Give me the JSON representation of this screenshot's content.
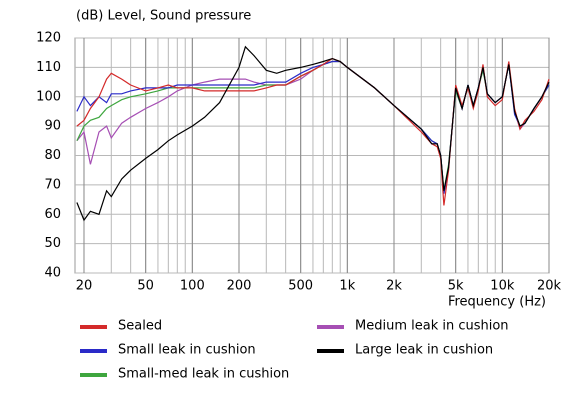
{
  "chart_data": {
    "type": "line",
    "title": "(dB)  Level, Sound pressure",
    "x_label": "Frequency  (Hz)",
    "log_x": true,
    "grid": true,
    "xlim": [
      17.5,
      20000
    ],
    "ylim": [
      40,
      120
    ],
    "xticks": [
      20,
      50,
      100,
      200,
      500,
      {
        "value": 1000,
        "label": "1k"
      },
      {
        "value": 2000,
        "label": "2k"
      },
      {
        "value": 5000,
        "label": "5k"
      },
      {
        "value": 10000,
        "label": "10k"
      },
      {
        "value": 20000,
        "label": "20k"
      }
    ],
    "yticks": [
      40,
      50,
      60,
      70,
      80,
      90,
      100,
      110,
      120
    ],
    "x": [
      18,
      20,
      22,
      25,
      28,
      30,
      35,
      40,
      50,
      60,
      70,
      80,
      100,
      120,
      150,
      200,
      220,
      250,
      300,
      350,
      400,
      500,
      600,
      700,
      800,
      900,
      1000,
      1500,
      2000,
      3000,
      3500,
      3800,
      4000,
      4200,
      4500,
      5000,
      5500,
      6000,
      6500,
      7000,
      7500,
      8000,
      9000,
      10000,
      11000,
      12000,
      13000,
      14000,
      16000,
      18000,
      20000
    ],
    "series": [
      {
        "name": "Sealed",
        "color": "#d42a2a",
        "values": [
          90,
          92,
          96,
          100,
          106,
          108,
          106,
          104,
          102,
          103,
          104,
          103,
          103,
          102,
          102,
          102,
          102,
          102,
          103,
          104,
          104,
          107,
          109,
          111,
          113,
          112,
          110,
          103,
          97,
          88,
          84,
          83,
          79,
          63,
          75,
          104,
          97,
          103,
          96,
          102,
          111,
          100,
          97,
          99,
          112,
          96,
          89,
          92,
          95,
          99,
          106
        ]
      },
      {
        "name": "Small leak in cushion",
        "color": "#2a2ac8",
        "values": [
          95,
          100,
          97,
          100,
          98,
          101,
          101,
          102,
          103,
          103,
          103,
          104,
          104,
          104,
          104,
          104,
          104,
          104,
          105,
          105,
          105,
          108,
          110,
          111,
          112,
          112,
          110,
          103,
          97,
          89,
          85,
          84,
          80,
          67,
          76,
          103,
          96,
          104,
          97,
          103,
          110,
          101,
          98,
          100,
          111,
          94,
          90,
          91,
          96,
          100,
          104
        ]
      },
      {
        "name": "Small-med leak in cushion",
        "color": "#3ea63e",
        "values": [
          85,
          90,
          92,
          93,
          96,
          97,
          99,
          100,
          101,
          102,
          103,
          103,
          103,
          103,
          103,
          103,
          103,
          103,
          104,
          104,
          104,
          107,
          109,
          111,
          112,
          112,
          110,
          103,
          97,
          89,
          85,
          84,
          80,
          68,
          77,
          102,
          96,
          104,
          97,
          103,
          109,
          101,
          98,
          100,
          111,
          95,
          90,
          91,
          96,
          100,
          104
        ]
      },
      {
        "name": "Medium leak in cushion",
        "color": "#a64fb4",
        "values": [
          85,
          88,
          77,
          88,
          90,
          86,
          91,
          93,
          96,
          98,
          100,
          102,
          104,
          105,
          106,
          106,
          106,
          105,
          104,
          104,
          104,
          106,
          109,
          111,
          112,
          112,
          110,
          103,
          97,
          89,
          84,
          84,
          80,
          67,
          76,
          103,
          96,
          104,
          97,
          103,
          110,
          101,
          98,
          100,
          111,
          95,
          89,
          91,
          96,
          100,
          105
        ]
      },
      {
        "name": "Large leak in cushion",
        "color": "#000000",
        "values": [
          64,
          58,
          61,
          60,
          68,
          66,
          72,
          75,
          79,
          82,
          85,
          87,
          90,
          93,
          98,
          110,
          117,
          114,
          109,
          108,
          109,
          110,
          111,
          112,
          113,
          112,
          110,
          103,
          97,
          89,
          84,
          84,
          80,
          68,
          76,
          103,
          96,
          104,
          97,
          103,
          110,
          101,
          98,
          100,
          111,
          95,
          90,
          91,
          96,
          100,
          105
        ]
      }
    ]
  }
}
